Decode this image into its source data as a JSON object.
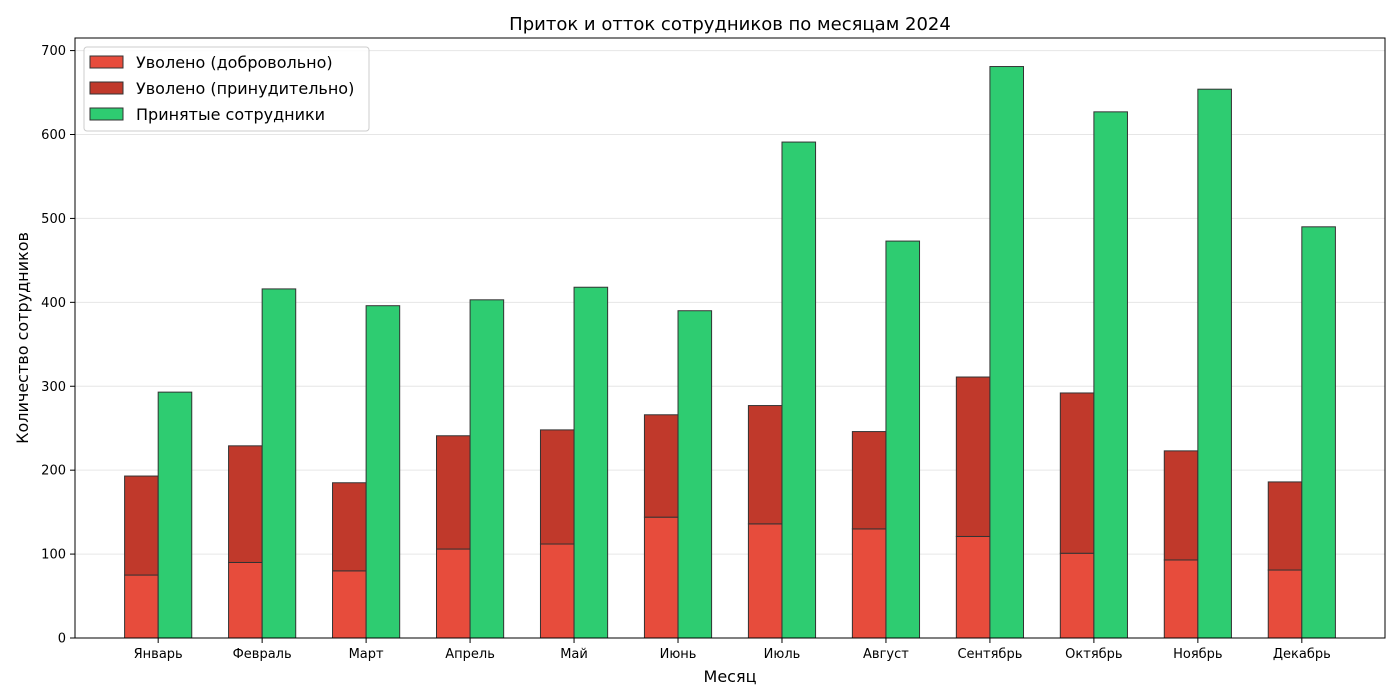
{
  "chart_data": {
    "type": "bar",
    "title": "Приток и отток сотрудников по месяцам 2024",
    "xlabel": "Месяц",
    "ylabel": "Количество сотрудников",
    "ylim": [
      0,
      715
    ],
    "yticks": [
      0,
      100,
      200,
      300,
      400,
      500,
      600,
      700
    ],
    "grid": "horizontal",
    "legend_position": "top-left",
    "categories": [
      "Январь",
      "Февраль",
      "Март",
      "Апрель",
      "Май",
      "Июнь",
      "Июль",
      "Август",
      "Сентябрь",
      "Октябрь",
      "Ноябрь",
      "Декабрь"
    ],
    "series": [
      {
        "name": "Уволено (добровольно)",
        "color": "#e74c3c",
        "stack": "fired",
        "values": [
          75,
          90,
          80,
          106,
          112,
          144,
          136,
          130,
          121,
          101,
          93,
          81
        ]
      },
      {
        "name": "Уволено (принудительно)",
        "color": "#c0392b",
        "stack": "fired",
        "values": [
          118,
          139,
          105,
          135,
          136,
          122,
          141,
          116,
          190,
          191,
          130,
          105
        ]
      },
      {
        "name": "Принятые сотрудники",
        "color": "#2ecc71",
        "stack": "hired",
        "values": [
          293,
          416,
          396,
          403,
          418,
          390,
          591,
          473,
          681,
          627,
          654,
          490
        ]
      }
    ]
  }
}
